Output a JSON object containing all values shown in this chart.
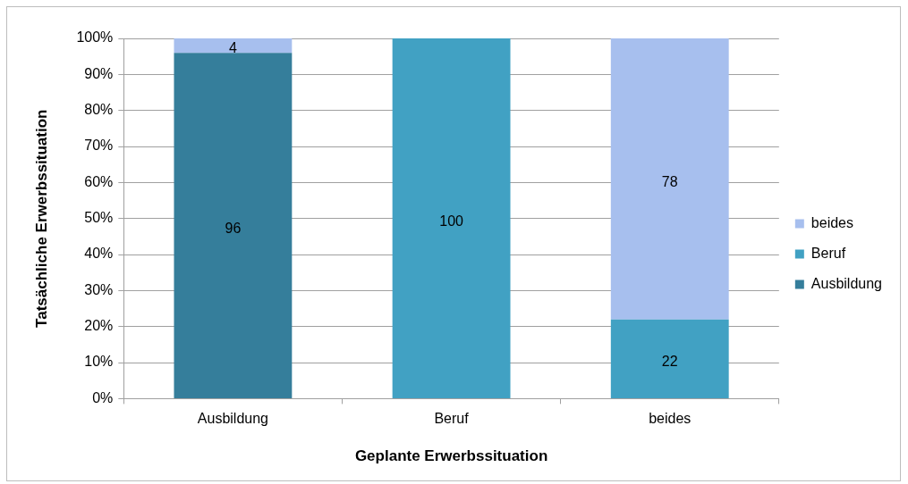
{
  "chart_data": {
    "type": "bar",
    "stacked": true,
    "xlabel": "Geplante Erwerbssituation",
    "ylabel": "Tatsächliche Erwerbssituation",
    "categories": [
      "Ausbildung",
      "Beruf",
      "beides"
    ],
    "series": [
      {
        "name": "Ausbildung",
        "color": "#357e9b",
        "values": [
          96,
          null,
          null
        ]
      },
      {
        "name": "Beruf",
        "color": "#41a1c3",
        "values": [
          null,
          100,
          22
        ]
      },
      {
        "name": "beides",
        "color": "#a7bfee",
        "values": [
          4,
          null,
          78
        ]
      }
    ],
    "ylim": [
      0,
      100
    ],
    "yticks": [
      {
        "value": 0,
        "label": "0%"
      },
      {
        "value": 10,
        "label": "10%"
      },
      {
        "value": 20,
        "label": "20%"
      },
      {
        "value": 30,
        "label": "30%"
      },
      {
        "value": 40,
        "label": "40%"
      },
      {
        "value": 50,
        "label": "50%"
      },
      {
        "value": 60,
        "label": "60%"
      },
      {
        "value": 70,
        "label": "70%"
      },
      {
        "value": 80,
        "label": "80%"
      },
      {
        "value": 90,
        "label": "90%"
      },
      {
        "value": 100,
        "label": "100%"
      }
    ],
    "grid": "y",
    "legend": "right",
    "data_labels": true
  }
}
